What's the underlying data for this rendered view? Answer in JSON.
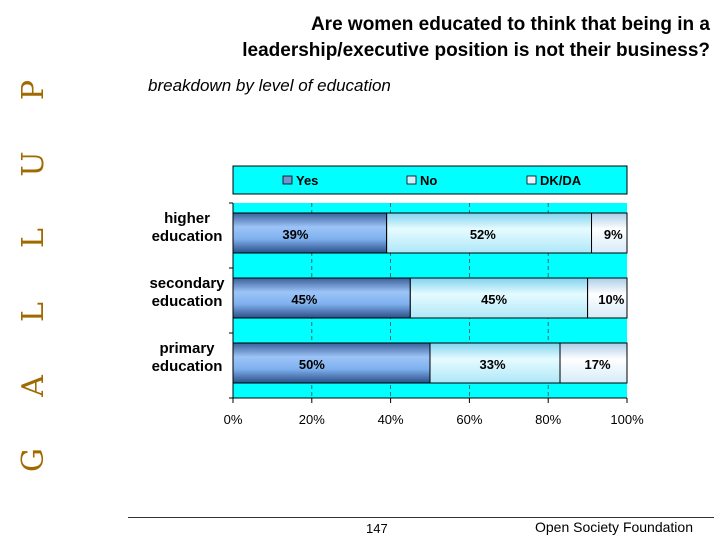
{
  "side_brand": [
    "G",
    "A",
    "L",
    "L",
    "U",
    "P"
  ],
  "title_lines": [
    "Are women educated to think that being in a",
    "leadership/executive position is not their business?"
  ],
  "subtitle": "breakdown by level of education",
  "footer": {
    "page_number": "147",
    "organization": "Open Society Foundation"
  },
  "colors": {
    "background": "#00FFFF",
    "yes": "#5e8fd8",
    "no": "#bff0ff",
    "dk": "#e8f4ff"
  },
  "chart_data": {
    "type": "bar",
    "orientation": "horizontal",
    "stacked": true,
    "categories": [
      [
        "higher",
        "education"
      ],
      [
        "secondary",
        "education"
      ],
      [
        "primary",
        "education"
      ]
    ],
    "series": [
      {
        "name": "Yes",
        "values": [
          39,
          45,
          50
        ]
      },
      {
        "name": "No",
        "values": [
          52,
          45,
          33
        ]
      },
      {
        "name": "DK/DA",
        "values": [
          9,
          10,
          17
        ]
      }
    ],
    "value_labels": [
      [
        "39%",
        "52%",
        "9%"
      ],
      [
        "45%",
        "45%",
        "10%"
      ],
      [
        "50%",
        "33%",
        "17%"
      ]
    ],
    "xlim": [
      0,
      100
    ],
    "x_ticks": [
      "0%",
      "20%",
      "40%",
      "60%",
      "80%",
      "100%"
    ],
    "legend_position": "top"
  }
}
